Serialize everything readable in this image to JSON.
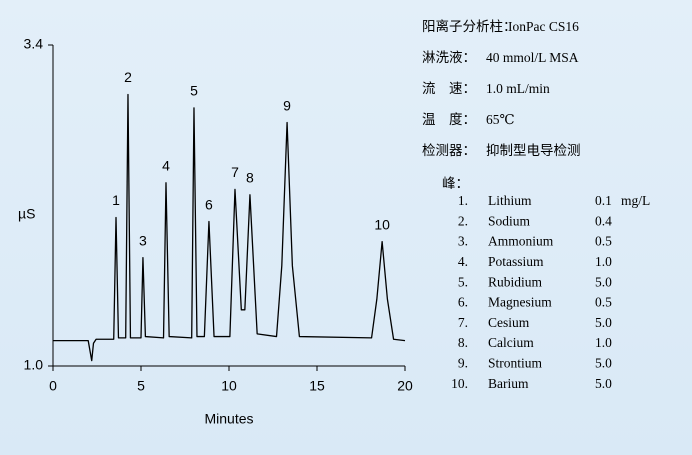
{
  "chart_data": {
    "type": "line",
    "x_label": "Minutes",
    "y_label": "µS",
    "xlim": [
      0,
      20
    ],
    "xticks": [
      0,
      5,
      10,
      15,
      20
    ],
    "ylim": [
      1.0,
      3.4
    ],
    "yticks": [
      {
        "value": 1.0,
        "label": "1.0"
      },
      3.4
    ],
    "color": "#000000",
    "x": [
      0,
      2.0,
      2.2,
      2.3,
      2.45,
      3.45,
      3.58,
      3.72,
      4.13,
      4.26,
      4.4,
      5.0,
      5.11,
      5.25,
      6.28,
      6.42,
      6.6,
      7.88,
      8.01,
      8.18,
      8.6,
      8.86,
      9.15,
      10.05,
      10.34,
      10.7,
      10.9,
      11.19,
      11.6,
      12.7,
      13.0,
      13.3,
      13.6,
      14.0,
      18.1,
      18.4,
      18.7,
      19.0,
      19.35,
      20
    ],
    "values": [
      1.19,
      1.19,
      1.04,
      1.17,
      1.2,
      1.2,
      2.11,
      1.21,
      1.21,
      3.03,
      1.21,
      1.21,
      1.81,
      1.22,
      1.21,
      2.37,
      1.22,
      1.21,
      2.93,
      1.22,
      1.22,
      2.08,
      1.22,
      1.22,
      2.32,
      1.42,
      1.42,
      2.28,
      1.24,
      1.22,
      1.75,
      2.82,
      1.75,
      1.22,
      1.21,
      1.5,
      1.93,
      1.5,
      1.2,
      1.19
    ],
    "peaks": [
      {
        "label": "1",
        "time": 3.58,
        "height": 2.11
      },
      {
        "label": "2",
        "time": 4.26,
        "height": 3.03
      },
      {
        "label": "3",
        "time": 5.11,
        "height": 1.81
      },
      {
        "label": "4",
        "time": 6.42,
        "height": 2.37
      },
      {
        "label": "5",
        "time": 8.01,
        "height": 2.93
      },
      {
        "label": "6",
        "time": 8.86,
        "height": 2.08
      },
      {
        "label": "7",
        "time": 10.34,
        "height": 2.32
      },
      {
        "label": "8",
        "time": 11.19,
        "height": 2.28
      },
      {
        "label": "9",
        "time": 13.3,
        "height": 2.82
      },
      {
        "label": "10",
        "time": 18.7,
        "height": 1.93
      }
    ]
  },
  "conditions": [
    {
      "label": "阳离子分析柱：",
      "value": "IonPac CS16"
    },
    {
      "label": "淋洗液：",
      "value": "40 mmol/L MSA"
    },
    {
      "label": "流　速：",
      "value": "1.0 mL/min"
    },
    {
      "label": "温　度：",
      "value": "65℃"
    },
    {
      "label": "检测器：",
      "value": "抑制型电导检测"
    }
  ],
  "peaks_title": "峰：",
  "peaks_table": [
    [
      "1.",
      "Lithium",
      "0.1",
      "mg/L"
    ],
    [
      "2.",
      "Sodium",
      "0.4"
    ],
    [
      "3.",
      "Ammonium",
      "0.5"
    ],
    [
      "4.",
      "Potassium",
      "1.0"
    ],
    [
      "5.",
      "Rubidium",
      "5.0"
    ],
    [
      "6.",
      "Magnesium",
      "0.5"
    ],
    [
      "7.",
      "Cesium",
      "5.0"
    ],
    [
      "8.",
      "Calcium",
      "1.0"
    ],
    [
      "9.",
      "Strontium",
      "5.0"
    ],
    [
      "10.",
      "Barium",
      "5.0"
    ]
  ]
}
